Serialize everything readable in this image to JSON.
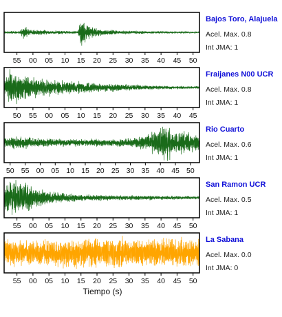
{
  "colors": {
    "trace": "#1a6b1a",
    "trace_last": "#ffa500",
    "station_name": "#1010d8",
    "frame": "#000000"
  },
  "chart_data": {
    "type": "line",
    "title": "",
    "xlabel": "Tiempo (s)",
    "ylabel": "",
    "grid": false,
    "panels": [
      {
        "station": "Bajos Toro, Alajuela",
        "accel_label": "Acel. Max. 0.8",
        "jma_label": "Int JMA: 1",
        "accel_max": 0.8,
        "int_jma": 1,
        "color": "#1a6b1a",
        "tick_labels": [
          "55",
          "00",
          "05",
          "10",
          "15",
          "20",
          "25",
          "30",
          "35",
          "40",
          "45",
          "50"
        ],
        "tick_times": [
          55,
          60,
          65,
          70,
          75,
          80,
          85,
          90,
          95,
          100,
          105,
          110
        ],
        "xlim": [
          51,
          112
        ],
        "envelope": [
          [
            51,
            0.06
          ],
          [
            56,
            0.08
          ],
          [
            57,
            0.35
          ],
          [
            58,
            0.3
          ],
          [
            60,
            0.15
          ],
          [
            65,
            0.1
          ],
          [
            74,
            0.07
          ],
          [
            75,
            0.95
          ],
          [
            76,
            0.65
          ],
          [
            78,
            0.3
          ],
          [
            81,
            0.18
          ],
          [
            86,
            0.1
          ],
          [
            95,
            0.07
          ],
          [
            112,
            0.04
          ]
        ]
      },
      {
        "station": "Fraijanes N00 UCR",
        "accel_label": "Acel. Max. 0.8",
        "jma_label": "Int JMA: 1",
        "accel_max": 0.8,
        "int_jma": 1,
        "color": "#1a6b1a",
        "tick_labels": [
          "50",
          "55",
          "00",
          "05",
          "10",
          "15",
          "20",
          "25",
          "30",
          "35",
          "40",
          "45"
        ],
        "tick_times": [
          50,
          55,
          60,
          65,
          70,
          75,
          80,
          85,
          90,
          95,
          100,
          105
        ],
        "xlim": [
          46,
          107
        ],
        "envelope": [
          [
            46,
            0.4
          ],
          [
            48,
            0.9
          ],
          [
            50,
            0.75
          ],
          [
            55,
            0.55
          ],
          [
            60,
            0.42
          ],
          [
            70,
            0.3
          ],
          [
            80,
            0.2
          ],
          [
            90,
            0.12
          ],
          [
            100,
            0.08
          ],
          [
            107,
            0.06
          ]
        ]
      },
      {
        "station": "Rio Cuarto",
        "accel_label": "Acel. Max. 0.6",
        "jma_label": "Int JMA: 1",
        "accel_max": 0.6,
        "int_jma": 1,
        "color": "#1a6b1a",
        "tick_labels": [
          "50",
          "55",
          "00",
          "05",
          "10",
          "15",
          "20",
          "25",
          "30",
          "35",
          "40",
          "45",
          "50"
        ],
        "tick_times": [
          50,
          55,
          60,
          65,
          70,
          75,
          80,
          85,
          90,
          95,
          100,
          105,
          110
        ],
        "xlim": [
          48,
          113
        ],
        "envelope": [
          [
            48,
            0.25
          ],
          [
            52,
            0.32
          ],
          [
            60,
            0.22
          ],
          [
            70,
            0.2
          ],
          [
            80,
            0.18
          ],
          [
            88,
            0.2
          ],
          [
            95,
            0.4
          ],
          [
            98,
            0.6
          ],
          [
            102,
            0.95
          ],
          [
            104,
            0.7
          ],
          [
            108,
            0.55
          ],
          [
            113,
            0.4
          ]
        ]
      },
      {
        "station": "San Ramon UCR",
        "accel_label": "Acel. Max. 0.5",
        "jma_label": "Int JMA: 1",
        "accel_max": 0.5,
        "int_jma": 1,
        "color": "#1a6b1a",
        "tick_labels": [
          "55",
          "00",
          "05",
          "10",
          "15",
          "20",
          "25",
          "30",
          "35",
          "40",
          "45",
          "50"
        ],
        "tick_times": [
          55,
          60,
          65,
          70,
          75,
          80,
          85,
          90,
          95,
          100,
          105,
          110
        ],
        "xlim": [
          51,
          112
        ],
        "envelope": [
          [
            51,
            0.6
          ],
          [
            53,
            0.95
          ],
          [
            56,
            0.85
          ],
          [
            60,
            0.55
          ],
          [
            65,
            0.35
          ],
          [
            70,
            0.25
          ],
          [
            80,
            0.15
          ],
          [
            90,
            0.12
          ],
          [
            100,
            0.1
          ],
          [
            112,
            0.08
          ]
        ]
      },
      {
        "station": "La Sabana",
        "accel_label": "Acel. Max. 0.0",
        "jma_label": "Int JMA: 0",
        "accel_max": 0.0,
        "int_jma": 0,
        "color": "#ffa500",
        "tick_labels": [
          "55",
          "00",
          "05",
          "10",
          "15",
          "20",
          "25",
          "30",
          "35",
          "40",
          "45",
          "50"
        ],
        "tick_times": [
          55,
          60,
          65,
          70,
          75,
          80,
          85,
          90,
          95,
          100,
          105,
          110
        ],
        "xlim": [
          51,
          112
        ],
        "envelope": [
          [
            51,
            0.75
          ],
          [
            112,
            0.75
          ]
        ]
      }
    ]
  }
}
